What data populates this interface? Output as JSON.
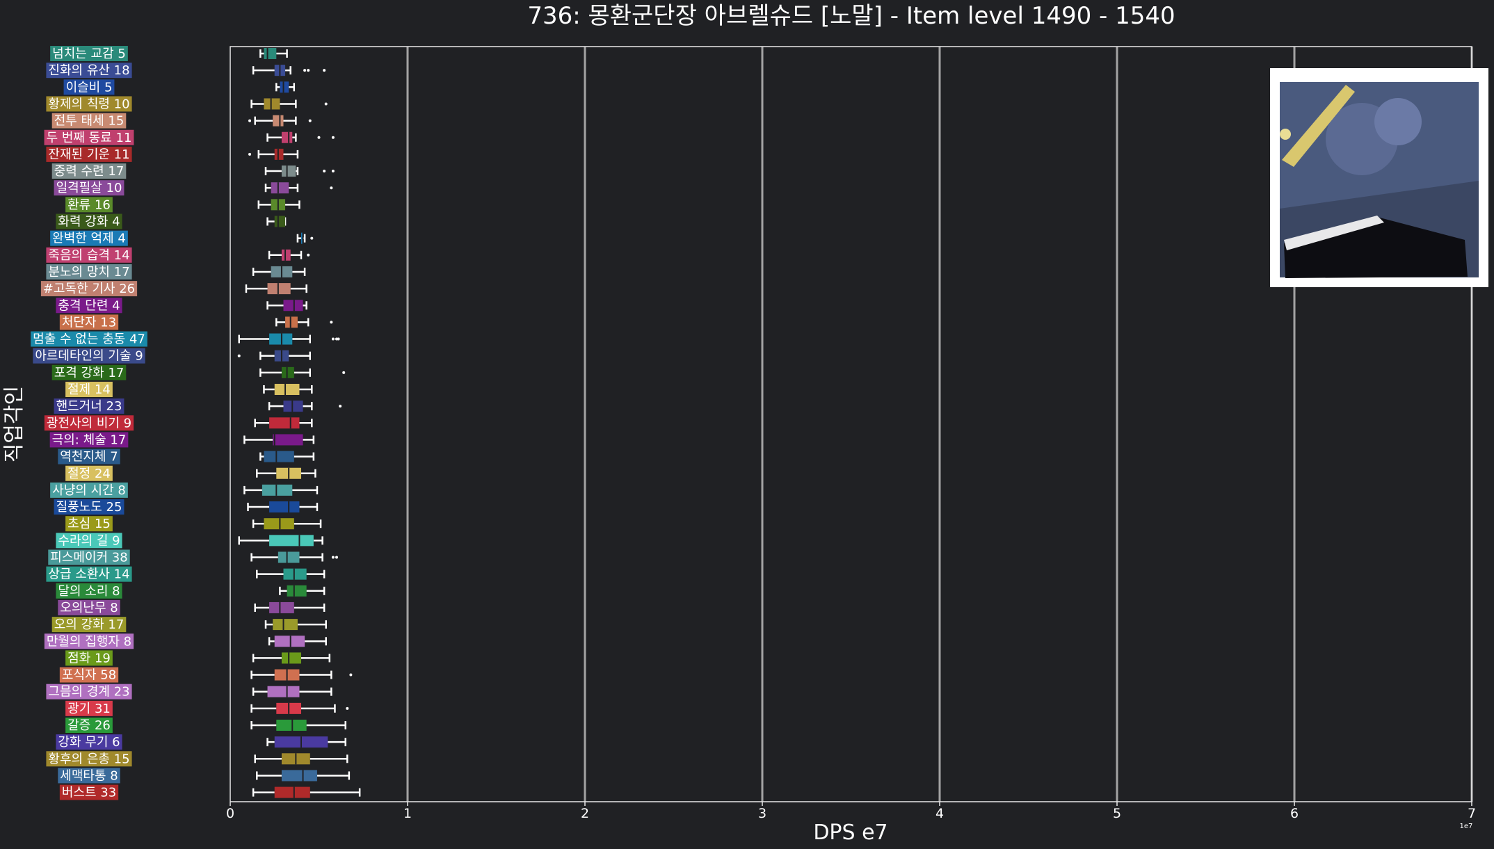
{
  "chart_data": {
    "type": "boxplot",
    "orientation": "horizontal",
    "title": "736: 몽환군단장 아브렐슈드 [노말] - Item level 1490 - 1540",
    "xlabel": "DPS e7",
    "ylabel": "직업각인",
    "x_offset_text": "1e7",
    "xlim": [
      0,
      7
    ],
    "x_ticks": [
      "0",
      "1",
      "2",
      "3",
      "4",
      "5",
      "6",
      "7"
    ],
    "grid": "vertical",
    "inset_image": "boss-portrait",
    "categories": [
      {
        "label": "넘치는 교감 5",
        "color": "#2a8a7a",
        "whislo": 0.17,
        "q1": 0.19,
        "med": 0.21,
        "q3": 0.26,
        "whishi": 0.32,
        "fliers": []
      },
      {
        "label": "진화의 유산 18",
        "color": "#3a4c95",
        "whislo": 0.13,
        "q1": 0.25,
        "med": 0.28,
        "q3": 0.31,
        "whishi": 0.34,
        "fliers": [
          0.42,
          0.44,
          0.53
        ]
      },
      {
        "label": "이슬비 5",
        "color": "#1f4aa0",
        "whislo": 0.26,
        "q1": 0.28,
        "med": 0.3,
        "q3": 0.33,
        "whishi": 0.36,
        "fliers": []
      },
      {
        "label": "황제의 칙령 10",
        "color": "#a0892c",
        "whislo": 0.12,
        "q1": 0.19,
        "med": 0.23,
        "q3": 0.28,
        "whishi": 0.37,
        "fliers": [
          0.54
        ]
      },
      {
        "label": "전투 태세 15",
        "color": "#c88a72",
        "whislo": 0.14,
        "q1": 0.24,
        "med": 0.28,
        "q3": 0.3,
        "whishi": 0.37,
        "fliers": [
          0.11,
          0.45
        ]
      },
      {
        "label": "두 번째 동료 11",
        "color": "#c0406e",
        "whislo": 0.21,
        "q1": 0.29,
        "med": 0.33,
        "q3": 0.35,
        "whishi": 0.37,
        "fliers": [
          0.5,
          0.58
        ]
      },
      {
        "label": "잔재된 기운 11",
        "color": "#a82a2a",
        "whislo": 0.16,
        "q1": 0.25,
        "med": 0.27,
        "q3": 0.3,
        "whishi": 0.38,
        "fliers": [
          0.11
        ]
      },
      {
        "label": "중력 수련 17",
        "color": "#7d8c8c",
        "whislo": 0.2,
        "q1": 0.29,
        "med": 0.32,
        "q3": 0.37,
        "whishi": 0.38,
        "fliers": [
          0.53,
          0.58
        ]
      },
      {
        "label": "일격필살 10",
        "color": "#8a4a9a",
        "whislo": 0.2,
        "q1": 0.23,
        "med": 0.27,
        "q3": 0.33,
        "whishi": 0.38,
        "fliers": [
          0.57
        ]
      },
      {
        "label": "환류 16",
        "color": "#5a8a2a",
        "whislo": 0.16,
        "q1": 0.23,
        "med": 0.27,
        "q3": 0.31,
        "whishi": 0.39,
        "fliers": []
      },
      {
        "label": "화력 강화 4",
        "color": "#3a5a1a",
        "whislo": 0.21,
        "q1": 0.25,
        "med": 0.27,
        "q3": 0.31,
        "whishi": 0.31,
        "fliers": []
      },
      {
        "label": "완벽한 억제 4",
        "color": "#1a7ab5",
        "whislo": 0.38,
        "q1": 0.4,
        "med": 0.41,
        "q3": 0.41,
        "whishi": 0.42,
        "fliers": [
          0.46
        ]
      },
      {
        "label": "죽음의 습격 14",
        "color": "#c04070",
        "whislo": 0.22,
        "q1": 0.29,
        "med": 0.31,
        "q3": 0.34,
        "whishi": 0.4,
        "fliers": [
          0.44
        ]
      },
      {
        "label": "분노의 망치 17",
        "color": "#6a8a92",
        "whislo": 0.13,
        "q1": 0.23,
        "med": 0.29,
        "q3": 0.35,
        "whishi": 0.42,
        "fliers": []
      },
      {
        "label": "#고독한 기사 26",
        "color": "#c08070",
        "whislo": 0.09,
        "q1": 0.21,
        "med": 0.27,
        "q3": 0.34,
        "whishi": 0.43,
        "fliers": []
      },
      {
        "label": "충격 단련 4",
        "color": "#7a1a8a",
        "whislo": 0.21,
        "q1": 0.3,
        "med": 0.36,
        "q3": 0.41,
        "whishi": 0.43,
        "fliers": []
      },
      {
        "label": "처단자 13",
        "color": "#c8704a",
        "whislo": 0.26,
        "q1": 0.31,
        "med": 0.34,
        "q3": 0.38,
        "whishi": 0.44,
        "fliers": [
          0.57
        ]
      },
      {
        "label": "멈출 수 없는 충동 47",
        "color": "#1a8aaa",
        "whislo": 0.05,
        "q1": 0.22,
        "med": 0.29,
        "q3": 0.35,
        "whishi": 0.45,
        "fliers": [
          0.58,
          0.6,
          0.61
        ]
      },
      {
        "label": "아르데타인의 기술 9",
        "color": "#3a4a8a",
        "whislo": 0.17,
        "q1": 0.25,
        "med": 0.29,
        "q3": 0.33,
        "whishi": 0.45,
        "fliers": [
          0.05
        ]
      },
      {
        "label": "포격 강화 17",
        "color": "#2a6a1a",
        "whislo": 0.17,
        "q1": 0.29,
        "med": 0.32,
        "q3": 0.36,
        "whishi": 0.45,
        "fliers": [
          0.64
        ]
      },
      {
        "label": "절제 14",
        "color": "#d8c060",
        "whislo": 0.19,
        "q1": 0.25,
        "med": 0.31,
        "q3": 0.39,
        "whishi": 0.46,
        "fliers": []
      },
      {
        "label": "핸드거너 23",
        "color": "#3a3a8a",
        "whislo": 0.22,
        "q1": 0.3,
        "med": 0.35,
        "q3": 0.41,
        "whishi": 0.46,
        "fliers": [
          0.62
        ]
      },
      {
        "label": "광전사의 비기 9",
        "color": "#c02a3a",
        "whislo": 0.14,
        "q1": 0.22,
        "med": 0.34,
        "q3": 0.39,
        "whishi": 0.46,
        "fliers": []
      },
      {
        "label": "극의: 체술 17",
        "color": "#7a1a8a",
        "whislo": 0.08,
        "q1": 0.24,
        "med": 0.25,
        "q3": 0.41,
        "whishi": 0.47,
        "fliers": []
      },
      {
        "label": "역천지체 7",
        "color": "#2a5a8a",
        "whislo": 0.17,
        "q1": 0.19,
        "med": 0.26,
        "q3": 0.36,
        "whishi": 0.47,
        "fliers": []
      },
      {
        "label": "절정 24",
        "color": "#d8c060",
        "whislo": 0.15,
        "q1": 0.26,
        "med": 0.33,
        "q3": 0.4,
        "whishi": 0.48,
        "fliers": []
      },
      {
        "label": "사냥의 시간 8",
        "color": "#4aa0a0",
        "whislo": 0.08,
        "q1": 0.18,
        "med": 0.26,
        "q3": 0.35,
        "whishi": 0.49,
        "fliers": []
      },
      {
        "label": "질풍노도 25",
        "color": "#1a4a9a",
        "whislo": 0.1,
        "q1": 0.22,
        "med": 0.33,
        "q3": 0.39,
        "whishi": 0.49,
        "fliers": []
      },
      {
        "label": "초심 15",
        "color": "#9a9a1a",
        "whislo": 0.13,
        "q1": 0.19,
        "med": 0.28,
        "q3": 0.36,
        "whishi": 0.51,
        "fliers": []
      },
      {
        "label": "수라의 길 9",
        "color": "#4ac8b8",
        "whislo": 0.05,
        "q1": 0.22,
        "med": 0.39,
        "q3": 0.47,
        "whishi": 0.52,
        "fliers": []
      },
      {
        "label": "피스메이커 38",
        "color": "#4a9a9a",
        "whislo": 0.12,
        "q1": 0.27,
        "med": 0.32,
        "q3": 0.39,
        "whishi": 0.52,
        "fliers": [
          0.58,
          0.6
        ]
      },
      {
        "label": "상급 소환사 14",
        "color": "#2a9a8a",
        "whislo": 0.15,
        "q1": 0.3,
        "med": 0.36,
        "q3": 0.43,
        "whishi": 0.53,
        "fliers": []
      },
      {
        "label": "달의 소리 8",
        "color": "#2a8a3a",
        "whislo": 0.28,
        "q1": 0.32,
        "med": 0.36,
        "q3": 0.43,
        "whishi": 0.53,
        "fliers": []
      },
      {
        "label": "오의난무 8",
        "color": "#8a4a9a",
        "whislo": 0.14,
        "q1": 0.22,
        "med": 0.28,
        "q3": 0.36,
        "whishi": 0.53,
        "fliers": []
      },
      {
        "label": "오의 강화 17",
        "color": "#9a9a2a",
        "whislo": 0.2,
        "q1": 0.24,
        "med": 0.3,
        "q3": 0.38,
        "whishi": 0.54,
        "fliers": []
      },
      {
        "label": "만월의 집행자 8",
        "color": "#b070c0",
        "whislo": 0.22,
        "q1": 0.25,
        "med": 0.34,
        "q3": 0.42,
        "whishi": 0.54,
        "fliers": []
      },
      {
        "label": "점화 19",
        "color": "#6a9a1a",
        "whislo": 0.13,
        "q1": 0.29,
        "med": 0.33,
        "q3": 0.4,
        "whishi": 0.56,
        "fliers": []
      },
      {
        "label": "포식자 58",
        "color": "#d07050",
        "whislo": 0.12,
        "q1": 0.25,
        "med": 0.32,
        "q3": 0.39,
        "whishi": 0.57,
        "fliers": [
          0.68
        ]
      },
      {
        "label": "그믐의 경계 23",
        "color": "#b070c0",
        "whislo": 0.13,
        "q1": 0.21,
        "med": 0.32,
        "q3": 0.39,
        "whishi": 0.57,
        "fliers": []
      },
      {
        "label": "광기 31",
        "color": "#d83a4a",
        "whislo": 0.12,
        "q1": 0.26,
        "med": 0.33,
        "q3": 0.4,
        "whishi": 0.59,
        "fliers": [
          0.66
        ]
      },
      {
        "label": "갈증 26",
        "color": "#2a9a3a",
        "whislo": 0.12,
        "q1": 0.26,
        "med": 0.35,
        "q3": 0.43,
        "whishi": 0.65,
        "fliers": []
      },
      {
        "label": "강화 무기 6",
        "color": "#4a3aa0",
        "whislo": 0.21,
        "q1": 0.25,
        "med": 0.4,
        "q3": 0.55,
        "whishi": 0.65,
        "fliers": []
      },
      {
        "label": "황후의 은총 15",
        "color": "#a0892c",
        "whislo": 0.14,
        "q1": 0.29,
        "med": 0.37,
        "q3": 0.45,
        "whishi": 0.66,
        "fliers": []
      },
      {
        "label": "세맥타통 8",
        "color": "#3a6a9a",
        "whislo": 0.15,
        "q1": 0.29,
        "med": 0.41,
        "q3": 0.49,
        "whishi": 0.67,
        "fliers": []
      },
      {
        "label": "버스트 33",
        "color": "#b02a2a",
        "whislo": 0.13,
        "q1": 0.25,
        "med": 0.36,
        "q3": 0.45,
        "whishi": 0.73,
        "fliers": []
      }
    ]
  }
}
